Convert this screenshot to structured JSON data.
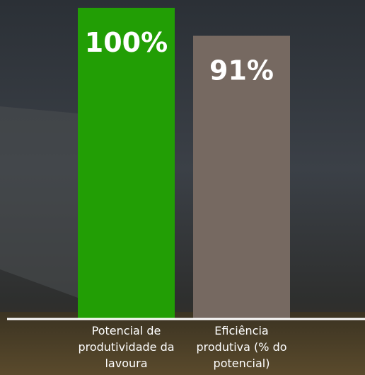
{
  "chart_data": {
    "type": "bar",
    "categories": [
      "Potencial de produtividade da lavoura",
      "Eficiência produtiva (% do potencial)"
    ],
    "values": [
      100,
      91
    ],
    "value_labels": [
      "100%",
      "91%"
    ],
    "colors": [
      "#229e05",
      "#766961"
    ]
  }
}
